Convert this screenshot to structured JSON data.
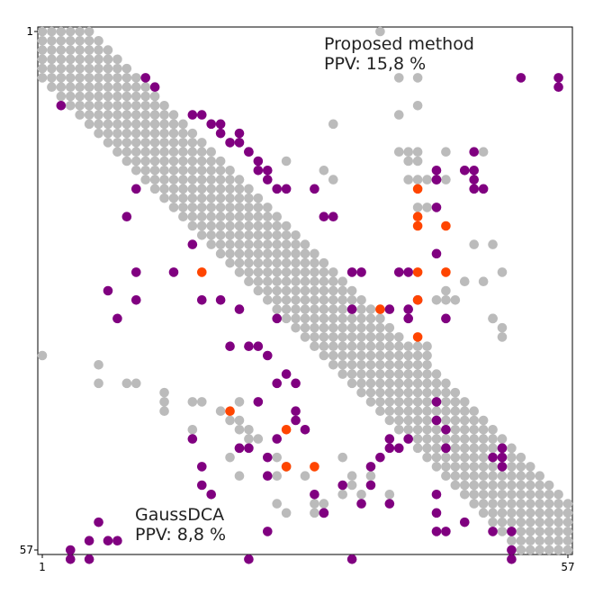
{
  "chart_data": {
    "type": "scatter",
    "title": "",
    "xlabel": "",
    "ylabel": "",
    "xlim": [
      1,
      57
    ],
    "ylim": [
      1,
      57
    ],
    "x_ticks": [
      "1",
      "57"
    ],
    "y_ticks": [
      "1",
      "57"
    ],
    "grid": false,
    "annotations": {
      "upper_name": "Proposed method",
      "upper_ppv": "PPV: 15,8 %",
      "lower_name": "GaussDCA",
      "lower_ppv": "PPV: 8,8 %"
    },
    "colors": {
      "native": "#bbbbbb",
      "predicted": "#800080",
      "highlight": "#ff4500"
    },
    "native_band": {
      "description": "diagonal native contact band |i-j| <= 5, plus offdiagonal native contacts",
      "halfwidth": 5
    },
    "series": [
      {
        "key": "native",
        "points": [
          [
            37,
            1
          ],
          [
            39,
            6
          ],
          [
            41,
            6
          ],
          [
            39,
            10
          ],
          [
            41,
            9
          ],
          [
            32,
            11
          ],
          [
            41,
            14
          ],
          [
            39,
            14
          ],
          [
            40,
            14
          ],
          [
            44,
            14
          ],
          [
            48,
            14
          ],
          [
            27,
            15
          ],
          [
            40,
            15
          ],
          [
            41,
            15
          ],
          [
            31,
            16
          ],
          [
            32,
            17
          ],
          [
            41,
            17
          ],
          [
            40,
            17
          ],
          [
            42,
            17
          ],
          [
            44,
            17
          ],
          [
            46,
            16
          ],
          [
            41,
            20
          ],
          [
            42,
            20
          ],
          [
            49,
            24
          ],
          [
            47,
            24
          ],
          [
            50,
            27
          ],
          [
            48,
            28
          ],
          [
            46,
            28
          ],
          [
            49,
            32
          ],
          [
            43,
            30
          ],
          [
            44,
            29
          ],
          [
            44,
            30
          ],
          [
            45,
            30
          ],
          [
            50,
            33
          ],
          [
            50,
            34
          ],
          [
            49,
            32
          ],
          [
            36,
            34
          ],
          [
            42,
            36
          ],
          [
            41,
            35
          ],
          [
            42,
            35
          ],
          [
            1,
            36
          ],
          [
            7,
            37
          ],
          [
            7,
            39
          ],
          [
            10,
            39
          ],
          [
            11,
            39
          ],
          [
            14,
            40
          ],
          [
            14,
            41
          ],
          [
            14,
            42
          ],
          [
            17,
            41
          ],
          [
            18,
            41
          ],
          [
            20,
            42
          ],
          [
            22,
            41
          ],
          [
            21,
            43
          ],
          [
            22,
            43
          ],
          [
            17,
            44
          ],
          [
            22,
            44
          ],
          [
            23,
            44
          ],
          [
            23,
            45
          ],
          [
            24,
            45
          ],
          [
            22,
            46
          ],
          [
            21,
            47
          ],
          [
            26,
            47
          ],
          [
            27,
            48
          ],
          [
            22,
            49
          ],
          [
            26,
            49
          ],
          [
            27,
            48
          ],
          [
            29,
            49
          ],
          [
            33,
            47
          ],
          [
            34,
            49
          ],
          [
            36,
            49
          ],
          [
            33,
            51
          ],
          [
            26,
            52
          ],
          [
            30,
            52
          ],
          [
            31,
            52
          ],
          [
            34,
            50
          ],
          [
            35,
            51
          ],
          [
            38,
            51
          ],
          [
            27,
            53
          ],
          [
            30,
            53
          ],
          [
            31,
            53
          ]
        ]
      },
      {
        "key": "predicted_upper",
        "points": [
          [
            12,
            6
          ],
          [
            13,
            7
          ],
          [
            17,
            10
          ],
          [
            18,
            10
          ],
          [
            19,
            11
          ],
          [
            20,
            11
          ],
          [
            20,
            12
          ],
          [
            22,
            12
          ],
          [
            21,
            13
          ],
          [
            22,
            13
          ],
          [
            23,
            14
          ],
          [
            23,
            14
          ],
          [
            24,
            15
          ],
          [
            24,
            16
          ],
          [
            25,
            16
          ],
          [
            25,
            17
          ],
          [
            26,
            18
          ],
          [
            27,
            18
          ],
          [
            30,
            18
          ],
          [
            31,
            21
          ],
          [
            32,
            21
          ],
          [
            34,
            27
          ],
          [
            35,
            27
          ],
          [
            39,
            27
          ],
          [
            40,
            27
          ],
          [
            38,
            31
          ],
          [
            40,
            31
          ],
          [
            40,
            32
          ],
          [
            34,
            31
          ],
          [
            41,
            30
          ],
          [
            43,
            20
          ],
          [
            43,
            17
          ],
          [
            43,
            16
          ],
          [
            47,
            14
          ],
          [
            47,
            16
          ],
          [
            47,
            17
          ],
          [
            47,
            18
          ],
          [
            48,
            18
          ],
          [
            52,
            6
          ],
          [
            56,
            6
          ],
          [
            56,
            7
          ],
          [
            43,
            17
          ],
          [
            46,
            16
          ],
          [
            43,
            25
          ],
          [
            44,
            32
          ]
        ]
      },
      {
        "key": "predicted_lower",
        "points": [
          [
            3,
            9
          ],
          [
            11,
            18
          ],
          [
            10,
            21
          ],
          [
            17,
            24
          ],
          [
            11,
            27
          ],
          [
            15,
            27
          ],
          [
            8,
            29
          ],
          [
            11,
            30
          ],
          [
            18,
            30
          ],
          [
            20,
            30
          ],
          [
            9,
            32
          ],
          [
            22,
            31
          ],
          [
            26,
            32
          ],
          [
            21,
            35
          ],
          [
            23,
            35
          ],
          [
            24,
            35
          ],
          [
            25,
            36
          ],
          [
            27,
            38
          ],
          [
            26,
            39
          ],
          [
            24,
            41
          ],
          [
            28,
            39
          ],
          [
            28,
            42
          ],
          [
            28,
            43
          ],
          [
            23,
            46
          ],
          [
            17,
            45
          ],
          [
            26,
            45
          ],
          [
            22,
            46
          ],
          [
            25,
            47
          ],
          [
            18,
            48
          ],
          [
            38,
            46
          ],
          [
            37,
            47
          ],
          [
            36,
            48
          ],
          [
            25,
            49
          ],
          [
            38,
            45
          ],
          [
            39,
            46
          ],
          [
            36,
            50
          ],
          [
            33,
            50
          ],
          [
            30,
            51
          ],
          [
            18,
            50
          ],
          [
            19,
            51
          ],
          [
            35,
            52
          ],
          [
            38,
            52
          ],
          [
            31,
            53
          ],
          [
            25,
            55
          ],
          [
            7,
            54
          ],
          [
            6,
            56
          ],
          [
            8,
            56
          ],
          [
            9,
            56
          ],
          [
            4,
            57
          ],
          [
            4,
            58
          ],
          [
            6,
            58
          ],
          [
            23,
            58
          ],
          [
            34,
            58
          ],
          [
            40,
            45
          ],
          [
            43,
            55
          ],
          [
            44,
            55
          ],
          [
            46,
            54
          ],
          [
            49,
            55
          ],
          [
            51,
            55
          ],
          [
            51,
            57
          ],
          [
            51,
            58
          ],
          [
            43,
            51
          ],
          [
            43,
            53
          ],
          [
            44,
            44
          ],
          [
            44,
            46
          ],
          [
            43,
            43
          ],
          [
            43,
            41
          ],
          [
            49,
            47
          ],
          [
            50,
            47
          ],
          [
            50,
            48
          ],
          [
            50,
            46
          ],
          [
            29,
            44
          ],
          [
            31,
            53
          ]
        ]
      },
      {
        "key": "highlight",
        "points": [
          [
            41,
            18
          ],
          [
            41,
            21
          ],
          [
            41,
            22
          ],
          [
            44,
            22
          ],
          [
            41,
            27
          ],
          [
            44,
            27
          ],
          [
            18,
            27
          ],
          [
            37,
            31
          ],
          [
            41,
            30
          ],
          [
            41,
            34
          ],
          [
            21,
            42
          ],
          [
            27,
            44
          ],
          [
            27,
            48
          ],
          [
            30,
            48
          ]
        ]
      }
    ]
  }
}
